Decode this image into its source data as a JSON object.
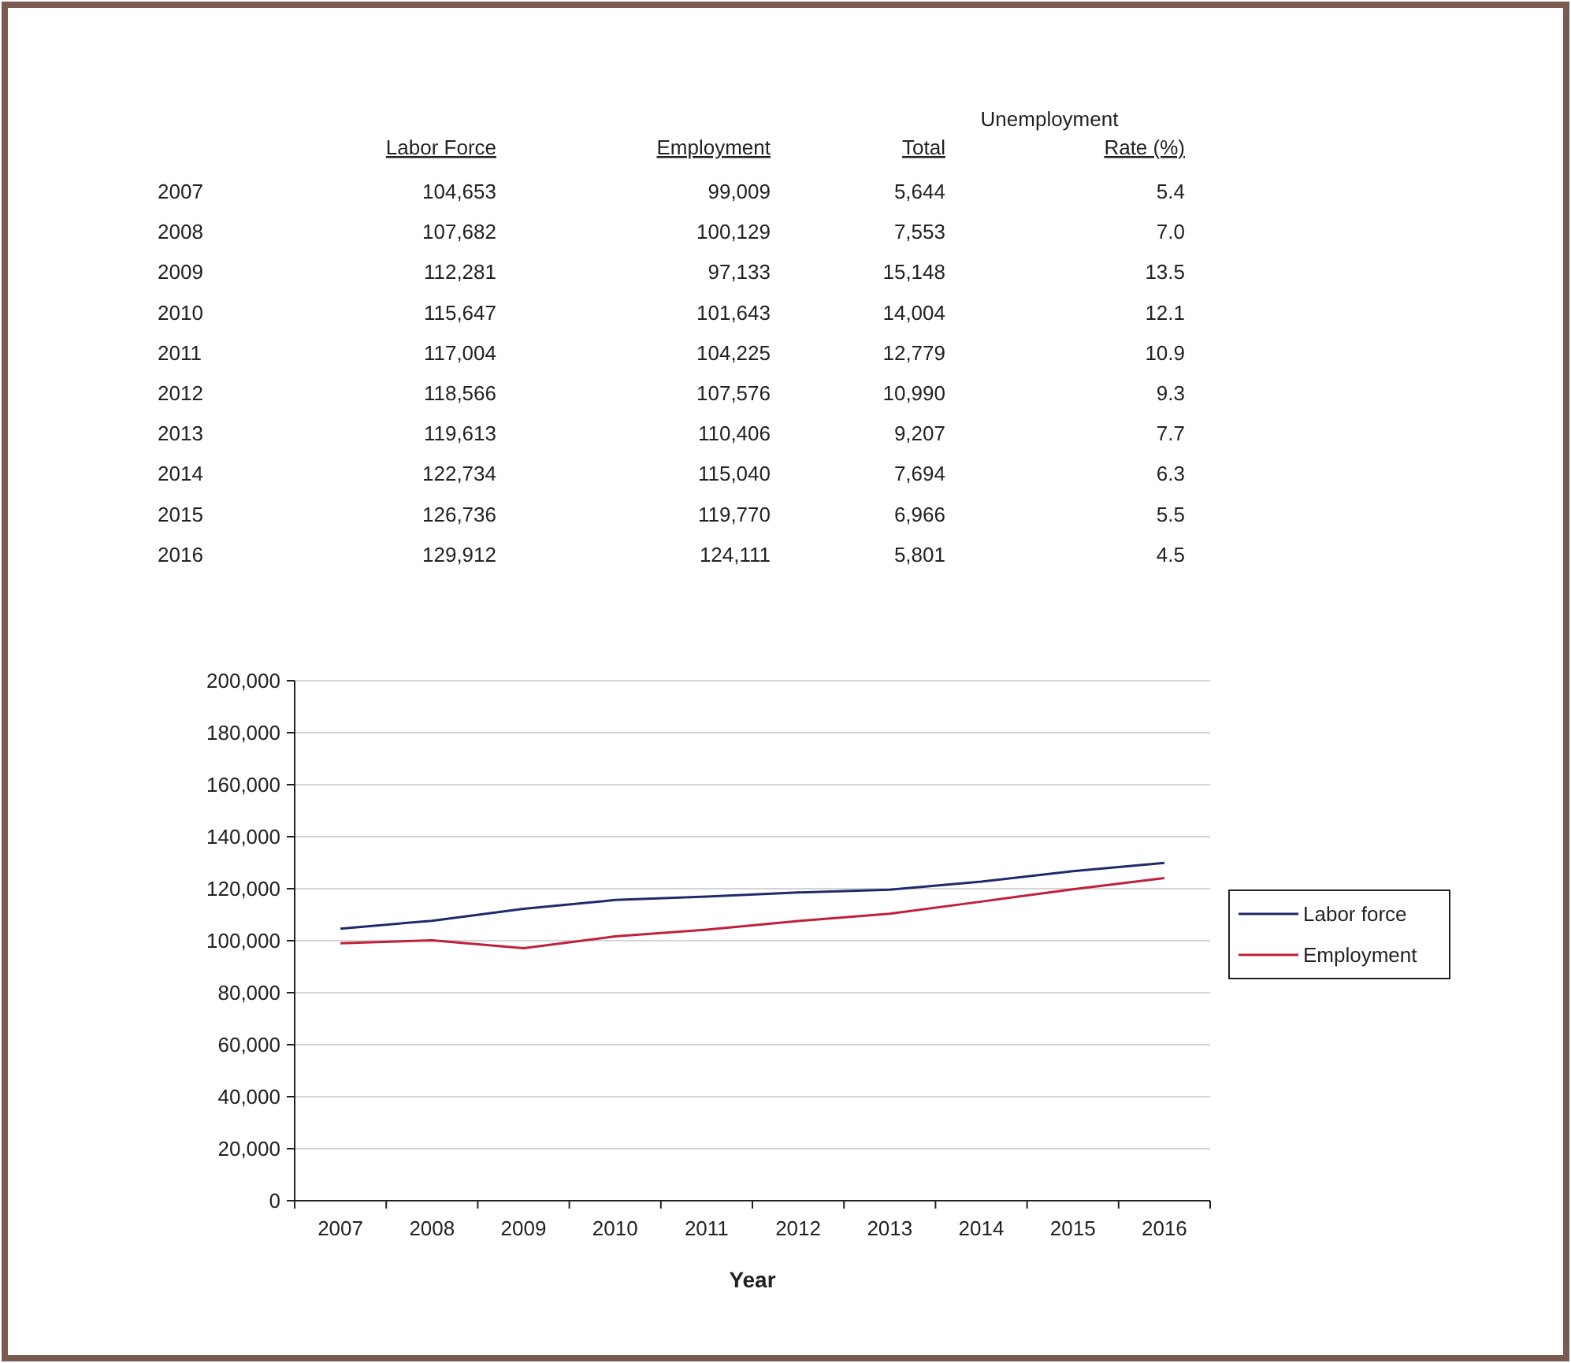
{
  "chart_data": [
    {
      "type": "heatmap",
      "annotations": [
        "Unemployment"
      ],
      "categories": [
        "Labor Force",
        "Employment",
        "Total",
        "Rate (%)"
      ],
      "y_categories": [
        "2007",
        "2008",
        "2009",
        "2010",
        "2011",
        "2012",
        "2013",
        "2014",
        "2015",
        "2016"
      ],
      "cells": [
        [
          104653,
          99009,
          5644,
          5.4
        ],
        [
          107682,
          100129,
          7553,
          7.0
        ],
        [
          112281,
          97133,
          15148,
          13.5
        ],
        [
          115647,
          101643,
          14004,
          12.1
        ],
        [
          117004,
          104225,
          12779,
          10.9
        ],
        [
          118566,
          107576,
          10990,
          9.3
        ],
        [
          119613,
          110406,
          9207,
          7.7
        ],
        [
          122734,
          115040,
          7694,
          6.3
        ],
        [
          126736,
          119770,
          6966,
          5.5
        ],
        [
          129912,
          124111,
          5801,
          4.5
        ]
      ],
      "cell_labels": [
        [
          "104,653",
          "99,009",
          "5,644",
          "5.4"
        ],
        [
          "107,682",
          "100,129",
          "7,553",
          "7.0"
        ],
        [
          "112,281",
          "97,133",
          "15,148",
          "13.5"
        ],
        [
          "115,647",
          "101,643",
          "14,004",
          "12.1"
        ],
        [
          "117,004",
          "104,225",
          "12,779",
          "10.9"
        ],
        [
          "118,566",
          "107,576",
          "10,990",
          "9.3"
        ],
        [
          "119,613",
          "110,406",
          "9,207",
          "7.7"
        ],
        [
          "122,734",
          "115,040",
          "7,694",
          "6.3"
        ],
        [
          "126,736",
          "119,770",
          "6,966",
          "5.5"
        ],
        [
          "129,912",
          "124,111",
          "5,801",
          "4.5"
        ]
      ]
    },
    {
      "type": "line",
      "xlabel": "Year",
      "categories": [
        "2007",
        "2008",
        "2009",
        "2010",
        "2011",
        "2012",
        "2013",
        "2014",
        "2015",
        "2016"
      ],
      "series": [
        {
          "name": "Labor force",
          "color": "#1f2a6b",
          "values": [
            104653,
            107682,
            112281,
            115647,
            117004,
            118566,
            119613,
            122734,
            126736,
            129912
          ]
        },
        {
          "name": "Employment",
          "color": "#c0203a",
          "values": [
            99009,
            100129,
            97133,
            101643,
            104225,
            107576,
            110406,
            115040,
            119770,
            124111
          ]
        }
      ],
      "ylim": [
        0,
        200000
      ],
      "yticks": [
        0,
        {
          "value": 20000,
          "label": "20,000"
        },
        {
          "value": 40000,
          "label": "40,000"
        },
        {
          "value": 60000,
          "label": "60,000"
        },
        {
          "value": 80000,
          "label": "80,000"
        },
        {
          "value": 100000,
          "label": "100,000"
        },
        {
          "value": 120000,
          "label": "120,000"
        },
        {
          "value": 140000,
          "label": "140,000"
        },
        {
          "value": 160000,
          "label": "160,000"
        },
        {
          "value": 180000,
          "label": "180,000"
        },
        {
          "value": 200000,
          "label": "200,000"
        }
      ],
      "grid": "y",
      "legend": "right"
    }
  ]
}
